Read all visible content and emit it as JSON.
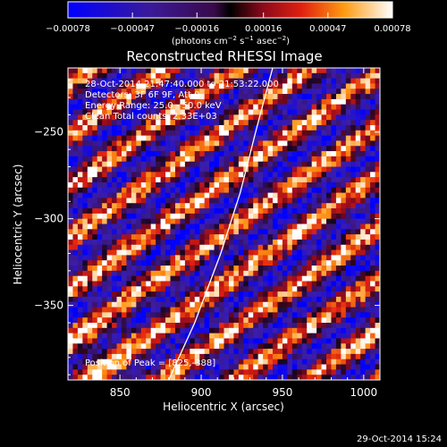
{
  "chart_data": {
    "type": "heatmap",
    "title": "Reconstructed RHESSI Image",
    "xlabel": "Heliocentric X (arcsec)",
    "ylabel": "Heliocentric Y (arcsec)",
    "xlim": [
      818,
      1010
    ],
    "ylim": [
      -393,
      -213
    ],
    "x_ticks": [
      850,
      900,
      950,
      1000
    ],
    "y_ticks": [
      -250,
      -300,
      -350
    ],
    "x_tick_labels": [
      "850",
      "900",
      "950",
      "1000"
    ],
    "y_tick_labels": [
      "−250",
      "−300",
      "−350"
    ],
    "colorbar": {
      "min": -0.00078,
      "max": 0.00078,
      "tick_values": [
        -0.00078,
        -0.00047,
        -0.00016,
        0.00016,
        0.00047,
        0.00078
      ],
      "tick_labels": [
        "−0.00078",
        "−0.00047",
        "−0.00016",
        "0.00016",
        "0.00047",
        "0.00078"
      ],
      "units_text": "(photons cm",
      "units_exp1": "−2",
      "units_mid": " s",
      "units_exp2": "−1",
      "units_end": " asec",
      "units_exp3": "−2",
      "units_close": ")"
    },
    "annotations": [
      "28-Oct-2014 21:47:40.000 to 21:53:22.000",
      "Detectors: 3F 6F 9F, Att 0",
      "Energy Range: 25.0 - 50.0 keV",
      "Clean    Total counts: 2.33E+03"
    ],
    "peak_text": "Position of Peak = [825,-388]",
    "limb_curve": [
      [
        880,
        -393
      ],
      [
        896,
        -360
      ],
      [
        912,
        -320
      ],
      [
        924,
        -285
      ],
      [
        934,
        -248
      ],
      [
        944,
        -213
      ]
    ],
    "pattern": {
      "description": "diagonal striped clean-residual pattern",
      "stripe_direction_deg": 55,
      "grid_cols": 64,
      "grid_rows": 60
    }
  },
  "footer": {
    "timestamp": "29-Oct-2014 15:24"
  }
}
